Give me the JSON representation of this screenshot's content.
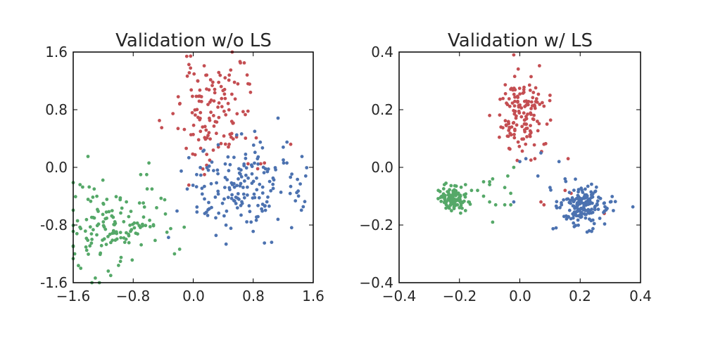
{
  "colors": {
    "red": "#c44e52",
    "blue": "#4c72b0",
    "green": "#55a868",
    "axis": "#000000",
    "text": "#262626"
  },
  "chart_data": [
    {
      "type": "scatter",
      "title": "Validation w/o LS",
      "xlabel": "",
      "ylabel": "",
      "xlim": [
        -1.6,
        1.6
      ],
      "ylim": [
        -1.6,
        1.6
      ],
      "xticks": [
        "−1.6",
        "−0.8",
        "0.0",
        "0.8",
        "1.6"
      ],
      "yticks": [
        "-1.6",
        "-0.8",
        "0.0",
        "0.8",
        "1.6"
      ],
      "grid": false,
      "series": [
        {
          "color": "red",
          "cluster": {
            "cx": 0.25,
            "cy": 0.75,
            "sx": 0.22,
            "sy": 0.35,
            "n": 120,
            "seed": 11
          },
          "points": [
            [
              0.63,
              1.45
            ],
            [
              0.68,
              1.45
            ],
            [
              0.18,
              1.28
            ],
            [
              0.5,
              1.35
            ],
            [
              0.06,
              1.2
            ],
            [
              0.34,
              1.18
            ],
            [
              -0.2,
              0.98
            ],
            [
              -0.18,
              0.88
            ],
            [
              0.73,
              0.78
            ],
            [
              -0.42,
              0.55
            ],
            [
              -0.45,
              0.65
            ],
            [
              0.48,
              0.32
            ],
            [
              0.22,
              0.1
            ],
            [
              0.18,
              0.18
            ],
            [
              0.9,
              0.05
            ],
            [
              0.95,
              0.06
            ],
            [
              0.86,
              -0.02
            ],
            [
              1.3,
              0.32
            ],
            [
              0.15,
              -0.1
            ]
          ]
        },
        {
          "color": "blue",
          "cluster": {
            "cx": 0.65,
            "cy": -0.3,
            "sx": 0.38,
            "sy": 0.3,
            "n": 170,
            "seed": 23
          },
          "points": [
            [
              0.95,
              -1.05
            ],
            [
              1.45,
              0.15
            ],
            [
              1.5,
              -0.12
            ],
            [
              1.38,
              -0.35
            ],
            [
              0.58,
              0.45
            ],
            [
              0.82,
              0.5
            ],
            [
              1.25,
              0.35
            ],
            [
              1.2,
              0.28
            ],
            [
              0.05,
              -0.55
            ],
            [
              0.05,
              -0.62
            ],
            [
              -0.08,
              -0.3
            ],
            [
              0.3,
              -0.7
            ]
          ]
        },
        {
          "color": "green",
          "cluster": {
            "cx": -1.05,
            "cy": -0.78,
            "sx": 0.3,
            "sy": 0.3,
            "n": 130,
            "seed": 37
          },
          "points": [
            [
              -0.7,
              -0.1
            ],
            [
              -0.62,
              -0.1
            ],
            [
              -0.55,
              -0.3
            ],
            [
              -0.65,
              -0.55
            ],
            [
              -0.38,
              -0.45
            ],
            [
              -0.35,
              -0.9
            ],
            [
              -0.3,
              -0.85
            ],
            [
              -0.25,
              -1.2
            ],
            [
              -0.12,
              -0.83
            ],
            [
              -1.58,
              -1.2
            ],
            [
              -1.5,
              -1.4
            ],
            [
              -1.35,
              -1.6
            ],
            [
              -1.1,
              -1.5
            ],
            [
              -1.32,
              -0.3
            ],
            [
              -1.2,
              -0.5
            ],
            [
              -1.55,
              -0.92
            ],
            [
              -1.5,
              -0.85
            ],
            [
              -1.42,
              -1.15
            ]
          ]
        }
      ]
    },
    {
      "type": "scatter",
      "title": "Validation w/ LS",
      "xlabel": "",
      "ylabel": "",
      "xlim": [
        -0.4,
        0.4
      ],
      "ylim": [
        -0.4,
        0.4
      ],
      "xticks": [
        "−0.4",
        "−0.2",
        "0.0",
        "0.2",
        "0.4"
      ],
      "yticks": [
        "−0.4",
        "−0.2",
        "0.0",
        "0.2",
        "0.4"
      ],
      "grid": false,
      "series": [
        {
          "color": "red",
          "cluster": {
            "cx": 0.0,
            "cy": 0.18,
            "sx": 0.035,
            "sy": 0.065,
            "n": 140,
            "seed": 51
          },
          "points": [
            [
              -0.02,
              0.39
            ],
            [
              0.1,
              0.25
            ],
            [
              -0.1,
              0.18
            ],
            [
              0.09,
              0.15
            ],
            [
              0.05,
              0.03
            ],
            [
              0.08,
              0.08
            ],
            [
              0.07,
              -0.12
            ],
            [
              0.08,
              -0.13
            ],
            [
              0.16,
              0.03
            ],
            [
              0.15,
              -0.08
            ],
            [
              0.17,
              -0.09
            ],
            [
              0.28,
              -0.16
            ]
          ]
        },
        {
          "color": "blue",
          "cluster": {
            "cx": 0.21,
            "cy": -0.13,
            "sx": 0.04,
            "sy": 0.035,
            "n": 170,
            "seed": 67
          },
          "points": [
            [
              0.0,
              0.02
            ],
            [
              -0.02,
              -0.12
            ],
            [
              0.02,
              0.03
            ],
            [
              0.07,
              0.05
            ],
            [
              0.12,
              -0.21
            ],
            [
              0.13,
              0.02
            ],
            [
              0.1,
              -0.07
            ],
            [
              0.3,
              -0.12
            ],
            [
              0.31,
              -0.15
            ],
            [
              0.23,
              -0.22
            ],
            [
              0.06,
              -0.03
            ],
            [
              0.15,
              -0.04
            ]
          ]
        },
        {
          "color": "green",
          "cluster": {
            "cx": -0.22,
            "cy": -0.11,
            "sx": 0.02,
            "sy": 0.018,
            "n": 110,
            "seed": 79
          },
          "points": [
            [
              -0.27,
              -0.08
            ],
            [
              -0.25,
              -0.06
            ],
            [
              -0.18,
              -0.06
            ],
            [
              -0.16,
              -0.08
            ],
            [
              -0.14,
              -0.08
            ],
            [
              -0.12,
              -0.1
            ],
            [
              -0.1,
              -0.12
            ],
            [
              -0.08,
              -0.13
            ],
            [
              -0.12,
              -0.05
            ],
            [
              -0.1,
              -0.06
            ],
            [
              -0.09,
              -0.04
            ],
            [
              -0.17,
              -0.12
            ],
            [
              -0.09,
              -0.19
            ],
            [
              -0.05,
              -0.13
            ],
            [
              -0.05,
              -0.07
            ],
            [
              -0.03,
              -0.09
            ],
            [
              -0.03,
              -0.13
            ],
            [
              -0.04,
              -0.03
            ],
            [
              -0.02,
              0.0
            ],
            [
              -0.1,
              -0.05
            ],
            [
              -0.23,
              -0.13
            ],
            [
              -0.2,
              -0.14
            ],
            [
              -0.18,
              -0.15
            ]
          ]
        }
      ]
    }
  ]
}
